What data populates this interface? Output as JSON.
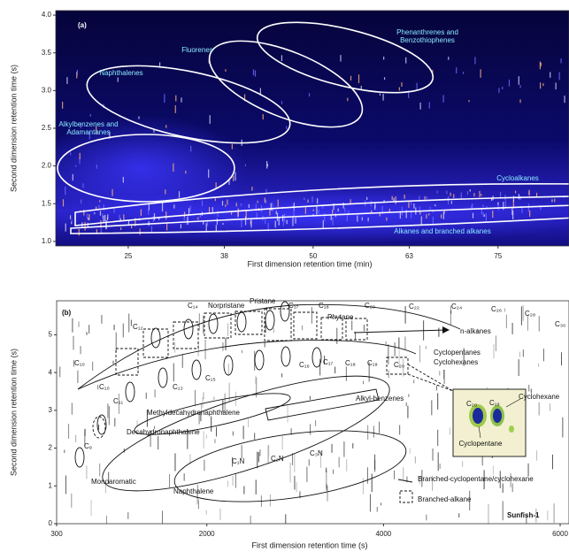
{
  "chart_data": [
    {
      "type": "heatmap",
      "xlabel": "First dimension retention time (min)",
      "ylabel": "Second dimension retention time (s)",
      "xlim": [
        15.2,
        84.6
      ],
      "ylim": [
        0.94,
        4.06
      ],
      "xticks": [
        25,
        38,
        50,
        63,
        75
      ],
      "yticks": [
        {
          "value": 1,
          "label": "1.0"
        },
        {
          "value": 1.5,
          "label": "1.5"
        },
        {
          "value": 2,
          "label": "2.0"
        },
        {
          "value": 2.5,
          "label": "2.5"
        },
        {
          "value": 3,
          "label": "3.0"
        },
        {
          "value": 3.5,
          "label": "3.5"
        },
        {
          "value": 4,
          "label": "4.0"
        }
      ],
      "annotations": [
        "(a)",
        "Phenanthrenes and",
        "Benzothiophenes",
        "Fluorenes",
        "Naphthalenes",
        "Alkylbenzenes and",
        "Adamantanes",
        "Cycloalkanes",
        "Alkanes and branched alkanes"
      ]
    },
    {
      "type": "heatmap",
      "xlabel": "First dimension retention time (s)",
      "ylabel": "Second dimension retention time (s)",
      "xlim": [
        300,
        6100
      ],
      "ylim": [
        0,
        5.9
      ],
      "xticks": [
        300,
        2000,
        4000,
        6000
      ],
      "yticks": [
        0,
        1,
        2,
        3,
        4,
        5
      ],
      "annotations": [
        "(b)",
        "C₉",
        "C₁₀",
        "C₁₀",
        "C₁₁",
        "C₁₂",
        "C₁₃",
        "C₁₄",
        "C₁₅",
        "Norpristane",
        "Pristane",
        "C₁₇",
        "C₁₈",
        "Phytane",
        "C₂₀",
        "C₂₂",
        "C₂₄",
        "C₂₆",
        "C₂₈",
        "C₃₀",
        "n-alkanes",
        "Cyclopentanes",
        "Cyclohexanes",
        "C₁₆",
        "C₁₇",
        "C₁₈",
        "C₁₉",
        "C₂₀",
        "Methyldecahydronaphthalene",
        "Decahydronaphthalene",
        "Alkyl-benzenes",
        "Monoaromatic",
        "Naphthalene",
        "C₁N",
        "C₂N",
        "C₃N",
        "Branched-cyclopentane/cyclohexane",
        "Branched-alkane",
        "Sunfish-1",
        "Cyclohexane",
        "C₂₀",
        "C₁₉",
        "Cyclopentane"
      ]
    }
  ]
}
